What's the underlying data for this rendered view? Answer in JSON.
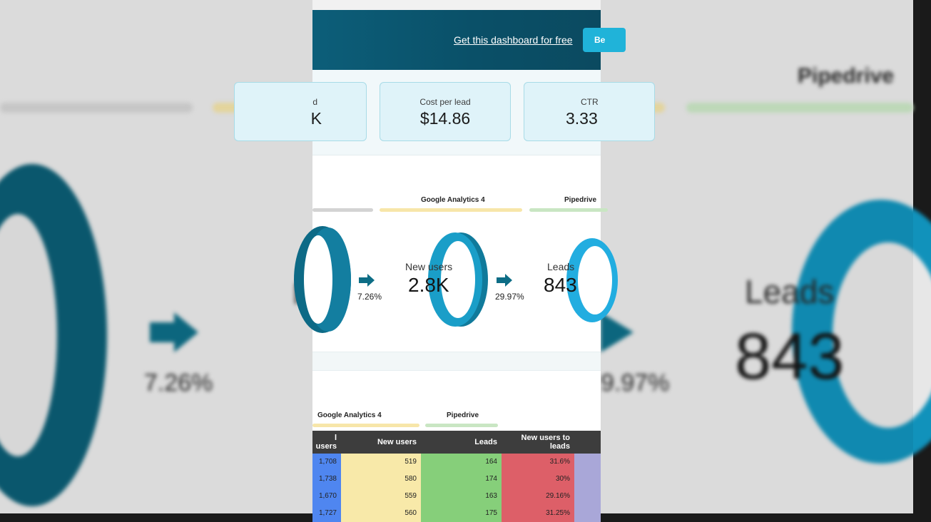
{
  "header": {
    "link_label": "Get this dashboard for free",
    "button_label": "Be"
  },
  "kpis": [
    {
      "label": "d",
      "value": "K"
    },
    {
      "label": "Cost per lead",
      "value": "$14.86"
    },
    {
      "label": "CTR",
      "value": "3.33"
    }
  ],
  "funnel": {
    "sources": [
      {
        "name": "",
        "color": "#d3d3d3"
      },
      {
        "name": "Google Analytics 4",
        "color": "#f7e6a9"
      },
      {
        "name": "Pipedrive",
        "color": "#c9e6c3"
      }
    ],
    "stages": [
      {
        "label": "New users",
        "value": "2.8K"
      },
      {
        "label": "Leads",
        "value": "843"
      }
    ],
    "conversions": [
      "7.26%",
      "29.97%"
    ],
    "ring_colors": {
      "dark": "#0e6f8c",
      "mid": "#1496bd",
      "light": "#28b7e3"
    }
  },
  "table": {
    "sources": [
      {
        "name": "Google Analytics 4",
        "color": "#f7e6a9"
      },
      {
        "name": "Pipedrive",
        "color": "#c9e6c3"
      }
    ],
    "columns": [
      "l users",
      "New users",
      "Leads",
      "New users to leads"
    ],
    "column_colors": [
      "#4f86f0",
      "#f8e9a9",
      "#86cf7a",
      "#dd5f68",
      "#a9a7d8"
    ],
    "rows": [
      [
        "1,708",
        "519",
        "164",
        "31.6%"
      ],
      [
        "1,738",
        "580",
        "174",
        "30%"
      ],
      [
        "1,670",
        "559",
        "163",
        "29.16%"
      ],
      [
        "1,727",
        "560",
        "175",
        "31.25%"
      ]
    ]
  },
  "background": {
    "title": "Pipedrive",
    "stage_label": "Leads",
    "stage_value": "843",
    "pct_left": "7.26%",
    "pct_right": "9.97%",
    "left_fragment": "N"
  }
}
